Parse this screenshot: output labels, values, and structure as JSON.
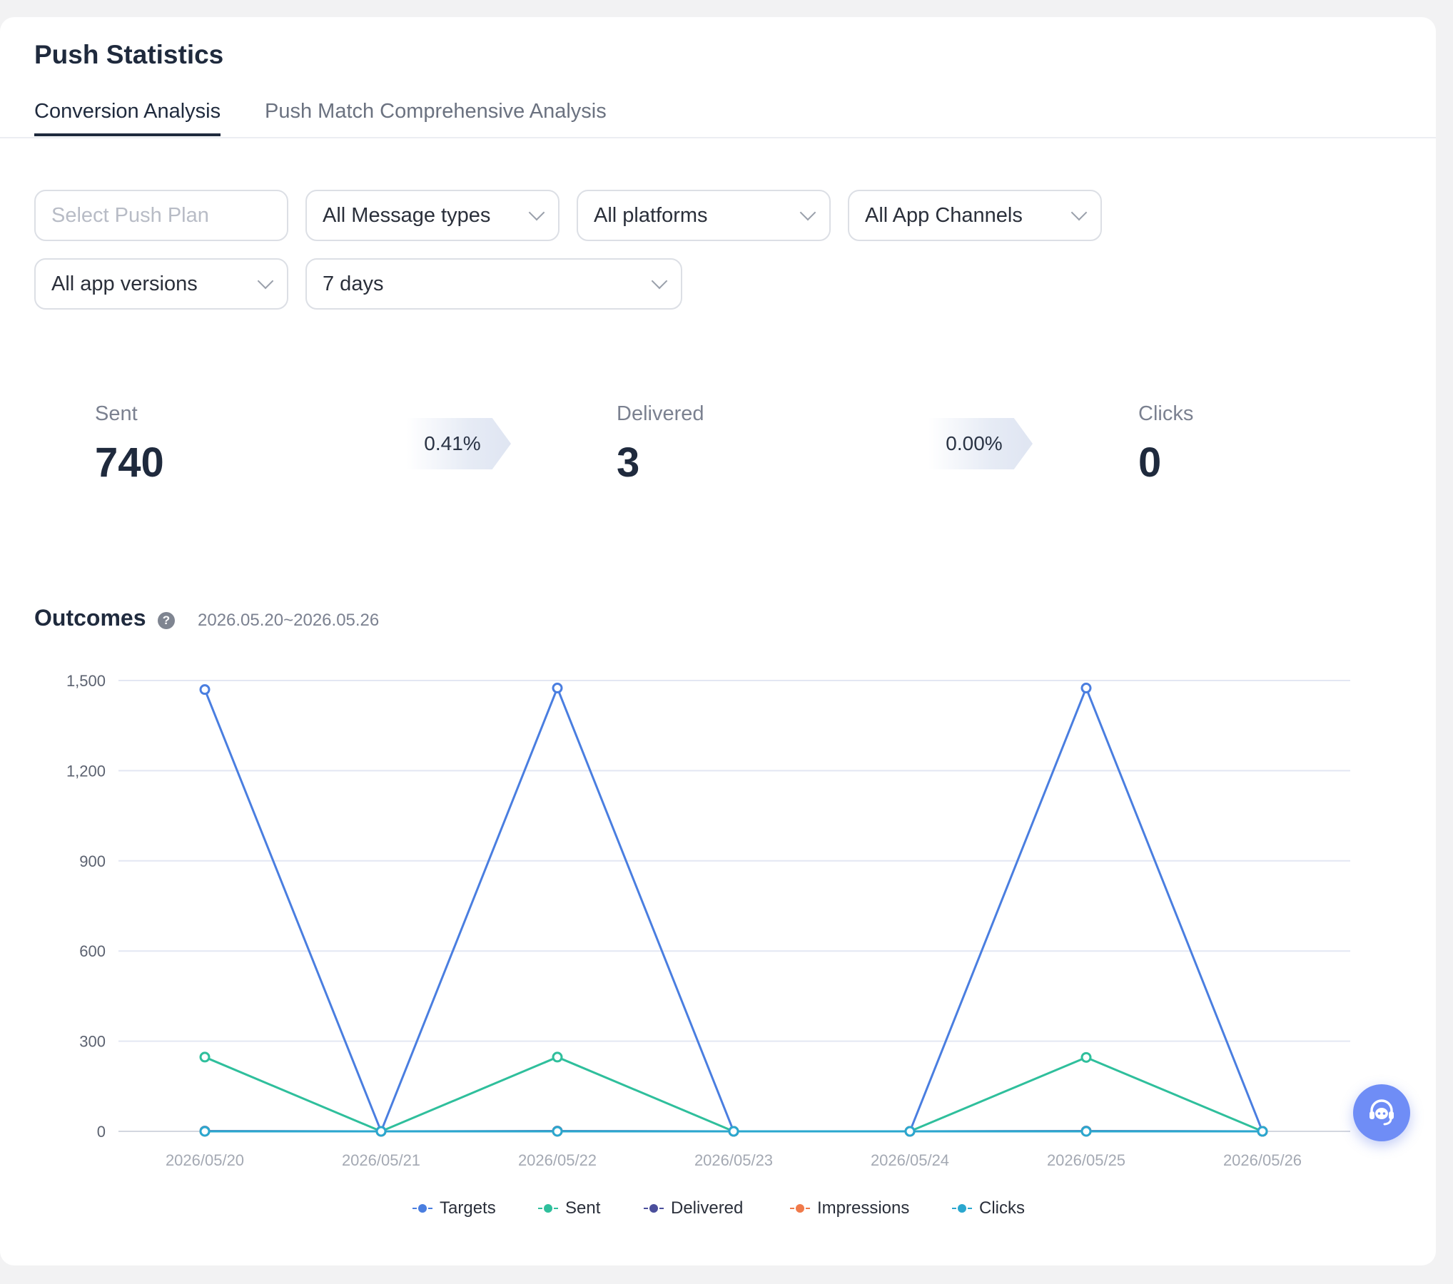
{
  "page": {
    "title": "Push Statistics"
  },
  "tabs": [
    {
      "label": "Conversion Analysis",
      "active": true
    },
    {
      "label": "Push Match Comprehensive Analysis",
      "active": false
    }
  ],
  "filters": {
    "push_plan": {
      "placeholder": "Select Push Plan",
      "value": ""
    },
    "message_type": "All Message types",
    "platform": "All platforms",
    "app_channel": "All App Channels",
    "app_version": "All app versions",
    "time_range": "7 days"
  },
  "funnel": {
    "sent": {
      "label": "Sent",
      "value": "740"
    },
    "sent_to_delivered_rate": "0.41%",
    "delivered": {
      "label": "Delivered",
      "value": "3"
    },
    "delivered_to_clicks_rate": "0.00%",
    "clicks": {
      "label": "Clicks",
      "value": "0"
    }
  },
  "outcomes": {
    "title": "Outcomes",
    "help_icon": "question-circle-icon",
    "date_range": "2026.05.20~2026.05.26"
  },
  "support_button": {
    "icon": "headset-icon"
  },
  "chart_data": {
    "type": "line",
    "categories": [
      "2026/05/20",
      "2026/05/21",
      "2026/05/22",
      "2026/05/23",
      "2026/05/24",
      "2026/05/25",
      "2026/05/26"
    ],
    "ylim": [
      0,
      1500
    ],
    "yticks": [
      "0",
      "300",
      "600",
      "900",
      "1,200",
      "1,500"
    ],
    "ytick_values": [
      0,
      300,
      600,
      900,
      1200,
      1500
    ],
    "grid": true,
    "legend_position": "bottom-center",
    "series": [
      {
        "name": "Targets",
        "color": "#4a7ee0",
        "values": [
          1470,
          0,
          1475,
          0,
          0,
          1475,
          0
        ]
      },
      {
        "name": "Sent",
        "color": "#2fbf9c",
        "values": [
          247,
          0,
          247,
          0,
          0,
          246,
          0
        ]
      },
      {
        "name": "Delivered",
        "color": "#4b4f9c",
        "values": [
          1,
          0,
          1,
          0,
          0,
          1,
          0
        ]
      },
      {
        "name": "Impressions",
        "color": "#f07a4a",
        "values": [
          0,
          0,
          0,
          0,
          0,
          0,
          0
        ]
      },
      {
        "name": "Clicks",
        "color": "#2aa7cf",
        "values": [
          0,
          0,
          0,
          0,
          0,
          0,
          0
        ]
      }
    ]
  }
}
